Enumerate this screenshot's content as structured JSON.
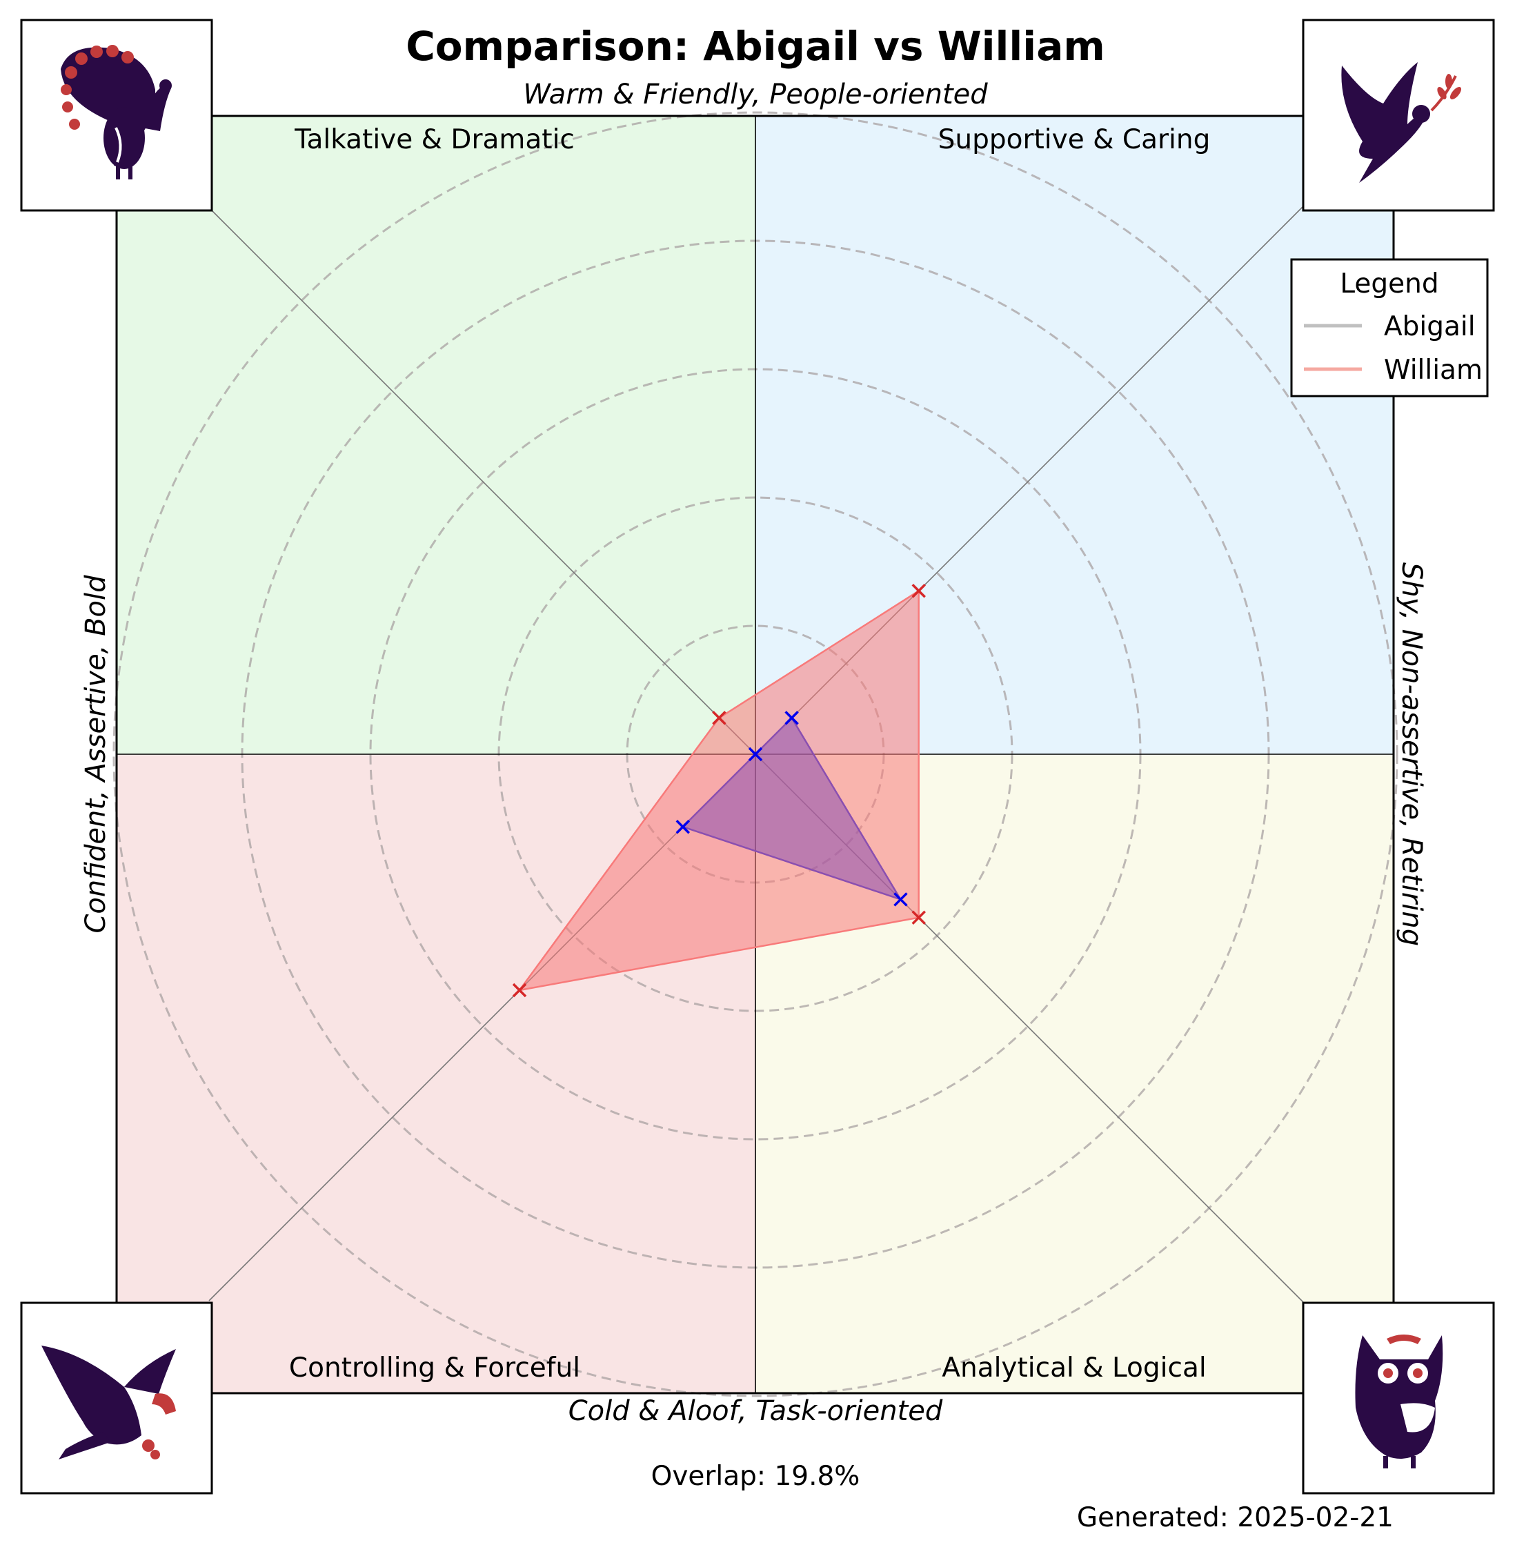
{
  "title": "Comparison: Abigail vs William",
  "axes": {
    "top": "Warm & Friendly, People-oriented",
    "bottom": "Cold & Aloof, Task-oriented",
    "left": "Confident, Assertive, Bold",
    "right": "Shy, Non-assertive, Retiring"
  },
  "quadrants": {
    "top_left": "Talkative & Dramatic",
    "top_right": "Supportive & Caring",
    "bottom_left": "Controlling & Forceful",
    "bottom_right": "Analytical & Logical"
  },
  "icons": {
    "top_left": "peacock-icon",
    "top_right": "dove-icon",
    "bottom_left": "eagle-icon",
    "bottom_right": "owl-icon"
  },
  "legend": {
    "title": "Legend",
    "entries": [
      "Abigail",
      "William"
    ]
  },
  "overlap_text": "Overlap: 19.8%",
  "generated_text": "Generated: 2025-02-21",
  "colors": {
    "q_top_left": "#e6f9e6",
    "q_top_right": "#e6f4fd",
    "q_bottom_left": "#f9e4e4",
    "q_bottom_right": "#fafaea",
    "abigail_line": "#c0c0c0",
    "william_line": "#f5a9a1",
    "abigail_fill": "#8a4fb0",
    "william_fill": "#f87a7a",
    "abigail_marker": "#0000ee",
    "william_marker": "#d62728",
    "icon_dark": "#2a0a45",
    "icon_accent": "#c23b3b"
  },
  "chart_data": {
    "type": "radar",
    "title": "Comparison: Abigail vs William",
    "axes_order": [
      "Supportive & Caring",
      "Analytical & Logical",
      "Controlling & Forceful",
      "Talkative & Dramatic"
    ],
    "rlim": [
      0,
      5
    ],
    "ring_levels": [
      1,
      2,
      3,
      4,
      5
    ],
    "grid": true,
    "legend_position": "top-right",
    "series": [
      {
        "name": "Abigail",
        "values": [
          0.4,
          1.6,
          0.8,
          0.0
        ]
      },
      {
        "name": "William",
        "values": [
          1.8,
          1.8,
          2.6,
          0.4
        ]
      }
    ]
  }
}
